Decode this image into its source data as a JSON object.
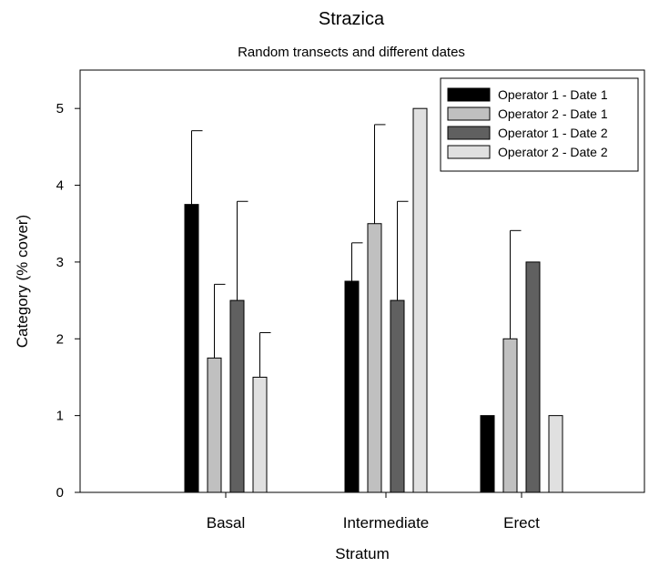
{
  "chart_data": {
    "type": "bar",
    "title": "Strazica",
    "subtitle": "Random transects and different dates",
    "xlabel": "Stratum",
    "ylabel": "Category (% cover)",
    "categories": [
      "Basal",
      "Intermediate",
      "Erect"
    ],
    "ylim": [
      0,
      5.5
    ],
    "yticks": [
      "0",
      "1",
      "2",
      "3",
      "4",
      "5"
    ],
    "grid": false,
    "legend_position": "top-right",
    "series": [
      {
        "name": "Operator 1 - Date 1",
        "color": "#000000",
        "values": [
          3.75,
          2.75,
          1.0
        ],
        "error": [
          0.96,
          0.5,
          null
        ]
      },
      {
        "name": "Operator 2 - Date 1",
        "color": "#c0c0c0",
        "values": [
          1.75,
          3.5,
          2.0
        ],
        "error": [
          0.96,
          1.29,
          1.41
        ]
      },
      {
        "name": "Operator 1 - Date 2",
        "color": "#606060",
        "values": [
          2.5,
          2.5,
          3.0
        ],
        "error": [
          1.29,
          1.29,
          null
        ]
      },
      {
        "name": "Operator 2 - Date 2",
        "color": "#e0e0e0",
        "values": [
          1.5,
          5.0,
          1.0
        ],
        "error": [
          0.58,
          null,
          null
        ]
      }
    ]
  }
}
